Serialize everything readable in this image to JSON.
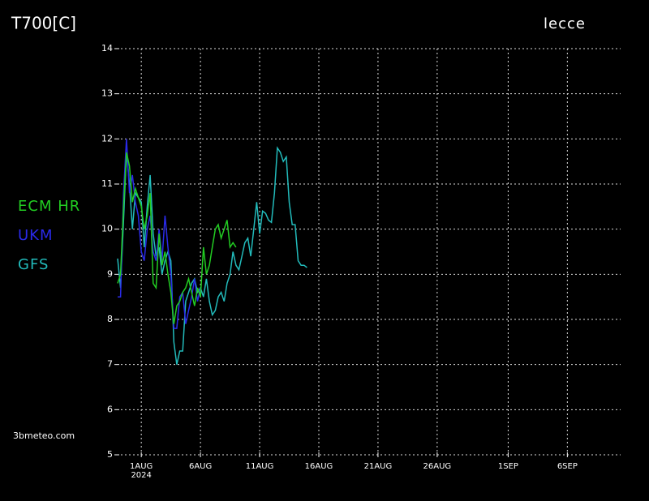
{
  "chart_data": {
    "type": "line",
    "title": "T700[C]",
    "location": "lecce",
    "source": "3bmeteo.com",
    "x_year": "2024",
    "x": [
      -1,
      -0.75,
      -0.5,
      -0.25,
      0,
      0.25,
      0.5,
      0.75,
      1,
      1.25,
      1.5,
      1.75,
      2,
      2.25,
      2.5,
      2.75,
      3,
      3.25,
      3.5,
      3.75,
      4,
      4.25,
      4.5,
      4.75,
      5,
      5.25,
      5.5,
      5.75,
      6,
      6.25,
      6.5,
      6.75,
      7,
      7.25,
      7.5,
      7.75,
      8,
      8.25,
      8.5,
      8.75,
      9,
      9.25,
      9.5,
      9.75,
      10,
      10.25,
      10.5,
      10.75,
      11,
      11.25,
      11.5,
      11.75,
      12,
      12.25,
      12.5,
      12.75,
      13,
      13.25,
      13.5,
      13.75,
      14,
      14.25,
      14.5,
      14.75,
      15
    ],
    "series": [
      {
        "name": "ECM HR",
        "color": "#22cc22",
        "values": [
          8.8,
          9.0,
          10.5,
          11.7,
          11.4,
          10.6,
          10.9,
          10.7,
          10.5,
          10.0,
          10.3,
          10.8,
          8.8,
          8.7,
          9.9,
          9.2,
          9.5,
          9.0,
          8.6,
          7.9,
          8.3,
          8.4,
          8.6,
          8.7,
          8.9,
          8.6,
          8.3,
          8.7,
          8.5,
          9.6,
          9.0,
          9.2,
          9.6,
          10.0,
          10.1,
          9.8,
          10.0,
          10.2,
          9.6,
          9.7,
          9.6,
          null,
          null,
          null,
          null,
          null,
          null,
          null,
          null,
          null,
          null,
          null,
          null,
          null,
          null,
          null,
          null,
          null,
          null,
          null,
          null,
          null,
          null,
          null,
          null
        ]
      },
      {
        "name": "UKM",
        "color": "#2a2ae8",
        "values": [
          8.5,
          8.5,
          10.8,
          12.0,
          10.8,
          11.2,
          10.6,
          10.3,
          9.5,
          9.3,
          10.0,
          10.3,
          9.5,
          9.3,
          10.0,
          9.3,
          10.3,
          9.6,
          9.0,
          7.8,
          7.8,
          8.5,
          8.6,
          7.9,
          8.2,
          8.5,
          8.9,
          8.4,
          8.7,
          null,
          null,
          null,
          null,
          null,
          null,
          null,
          null,
          null,
          null,
          null,
          null,
          null,
          null,
          null,
          null,
          null,
          null,
          null,
          null,
          null,
          null,
          null,
          null,
          null,
          null,
          null,
          null,
          null,
          null,
          null,
          null,
          null,
          null,
          null,
          null
        ]
      },
      {
        "name": "GFS",
        "color": "#22bbbb",
        "values": [
          9.35,
          8.7,
          10.2,
          11.7,
          11.0,
          10.0,
          10.8,
          10.7,
          10.6,
          9.6,
          10.5,
          11.2,
          9.9,
          9.4,
          9.6,
          9.0,
          9.3,
          9.5,
          9.3,
          7.5,
          7.0,
          7.3,
          7.3,
          8.4,
          8.6,
          8.8,
          8.9,
          8.6,
          8.7,
          8.5,
          8.9,
          8.4,
          8.1,
          8.2,
          8.5,
          8.6,
          8.4,
          8.8,
          9.0,
          9.5,
          9.2,
          9.1,
          9.4,
          9.7,
          9.8,
          9.4,
          10.0,
          10.6,
          9.9,
          10.4,
          10.35,
          10.2,
          10.15,
          10.8,
          11.8,
          11.7,
          11.5,
          11.6,
          10.6,
          10.1,
          10.1,
          9.3,
          9.2,
          9.2,
          9.15
        ]
      }
    ],
    "xlim": [
      -1,
      41.5
    ],
    "ylim": [
      5,
      14
    ],
    "xticks": [
      {
        "value": 1,
        "label": "1AUG"
      },
      {
        "value": 6,
        "label": "6AUG"
      },
      {
        "value": 11,
        "label": "11AUG"
      },
      {
        "value": 16,
        "label": "16AUG"
      },
      {
        "value": 21,
        "label": "21AUG"
      },
      {
        "value": 26,
        "label": "26AUG"
      },
      {
        "value": 32,
        "label": "1SEP"
      },
      {
        "value": 37,
        "label": "6SEP"
      }
    ],
    "yticks": [
      5,
      6,
      7,
      8,
      9,
      10,
      11,
      12,
      13,
      14
    ],
    "grid": true
  }
}
